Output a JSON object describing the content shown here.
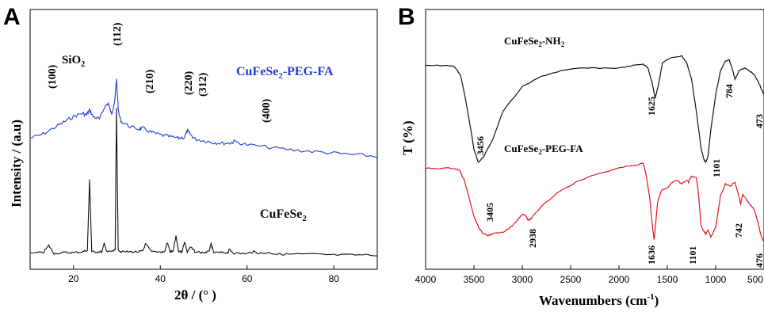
{
  "chart_data": [
    {
      "panel": "A",
      "type": "line",
      "xlabel": "2θ / (° )",
      "ylabel": "Intensity / (a.u)",
      "xlim": [
        10,
        90
      ],
      "xticks": [
        "20",
        "40",
        "60",
        "80"
      ],
      "xtick_values": [
        20,
        40,
        60,
        80
      ],
      "series": [
        {
          "name": "CuFeSe₂-PEG-FA",
          "color": "#1f3fd8",
          "x": [
            10,
            13,
            16,
            18,
            20,
            22,
            23,
            23.7,
            24.5,
            26,
            27.2,
            28,
            28.8,
            29.5,
            29.9,
            30.4,
            31,
            33,
            35,
            36,
            38,
            40,
            42,
            44,
            45.5,
            46.3,
            47,
            48,
            50,
            52,
            54,
            56,
            57,
            60,
            65,
            70,
            75,
            80,
            85,
            90
          ],
          "y": [
            10,
            15,
            24,
            30,
            36,
            40,
            38,
            44,
            36,
            33,
            48,
            52,
            38,
            56,
            80,
            40,
            30,
            24,
            21,
            22,
            17,
            14,
            12,
            10,
            11,
            19,
            14,
            9,
            7,
            5,
            4,
            4,
            6,
            2,
            -1,
            -4,
            -6,
            -8,
            -10,
            -12
          ]
        },
        {
          "name": "CuFeSe₂",
          "color": "#111111",
          "x": [
            10,
            13,
            14.3,
            15.5,
            18,
            20,
            22,
            23.2,
            23.7,
            24.2,
            25.5,
            26.6,
            27.1,
            27.6,
            29,
            29.6,
            29.9,
            30.3,
            31,
            33,
            35,
            36,
            36.6,
            38,
            40,
            41,
            41.6,
            42.3,
            43,
            43.6,
            44.2,
            45,
            45.6,
            46.2,
            47,
            48,
            50,
            51.2,
            51.7,
            52.3,
            54,
            55.5,
            56,
            57,
            60,
            61.5,
            63,
            65,
            67,
            70,
            75,
            80,
            85,
            90
          ],
          "y": [
            2,
            3,
            12,
            2,
            3,
            3,
            4,
            6,
            95,
            4,
            4,
            4,
            16,
            4,
            5,
            6,
            185,
            7,
            4,
            4,
            4,
            5,
            14,
            4,
            4,
            4,
            16,
            4,
            5,
            24,
            5,
            4,
            17,
            4,
            10,
            4,
            3,
            4,
            14,
            3,
            3,
            3,
            7,
            2,
            2,
            4,
            2,
            3,
            1,
            1,
            1,
            0,
            0,
            0
          ]
        }
      ],
      "annotations": [
        "SiO₂",
        "(100)",
        "(112)",
        "(210)",
        "(220)",
        "(312)",
        "(400)"
      ]
    },
    {
      "panel": "B",
      "type": "line",
      "xlabel": "Wavenumbers (cm⁻¹)",
      "ylabel": "T (%)",
      "xlim": [
        4000,
        500
      ],
      "xticks": [
        "4000",
        "3500",
        "3000",
        "2500",
        "2000",
        "1500",
        "1000",
        "500"
      ],
      "xtick_values": [
        4000,
        3500,
        3000,
        2500,
        2000,
        1500,
        1000,
        500
      ],
      "series": [
        {
          "name": "CuFeSe₂-NH₂",
          "color": "#111111",
          "x": [
            4000,
            3800,
            3700,
            3640,
            3600,
            3550,
            3500,
            3456,
            3400,
            3300,
            3200,
            3000,
            2800,
            2600,
            2400,
            2200,
            2000,
            1850,
            1750,
            1700,
            1660,
            1625,
            1590,
            1550,
            1450,
            1350,
            1300,
            1250,
            1200,
            1150,
            1120,
            1101,
            1080,
            1050,
            1000,
            950,
            900,
            860,
            830,
            800,
            784,
            760,
            700,
            650,
            600,
            560,
            530,
            500
          ],
          "y": [
            82,
            82,
            81,
            75,
            62,
            42,
            20,
            10,
            14,
            28,
            48,
            66,
            74,
            78,
            80,
            80,
            80,
            82,
            83,
            80,
            70,
            58,
            68,
            84,
            88,
            89,
            84,
            72,
            48,
            20,
            12,
            10,
            14,
            34,
            60,
            78,
            85,
            86,
            80,
            72,
            74,
            78,
            80,
            78,
            75,
            70,
            65,
            60
          ]
        },
        {
          "name": "CuFeSe₂-PEG-FA",
          "color": "#e0141e",
          "x": [
            4000,
            3850,
            3700,
            3650,
            3600,
            3550,
            3500,
            3450,
            3405,
            3350,
            3300,
            3200,
            3100,
            3000,
            2960,
            2938,
            2900,
            2800,
            2600,
            2400,
            2200,
            2000,
            1800,
            1750,
            1720,
            1680,
            1650,
            1636,
            1620,
            1600,
            1560,
            1500,
            1450,
            1400,
            1350,
            1300,
            1280,
            1250,
            1200,
            1180,
            1150,
            1120,
            1101,
            1080,
            1050,
            1000,
            950,
            900,
            850,
            800,
            760,
            742,
            720,
            650,
            600,
            560,
            530,
            500,
            476
          ],
          "y": [
            86,
            86,
            86,
            84,
            74,
            56,
            38,
            26,
            20,
            18,
            20,
            21,
            28,
            40,
            38,
            33,
            36,
            48,
            64,
            74,
            81,
            86,
            90,
            91,
            80,
            54,
            24,
            14,
            30,
            52,
            64,
            66,
            72,
            74,
            70,
            74,
            72,
            78,
            76,
            62,
            28,
            22,
            20,
            24,
            16,
            26,
            58,
            70,
            68,
            72,
            58,
            50,
            60,
            50,
            44,
            30,
            18,
            12,
            14
          ]
        }
      ],
      "annotations": [
        "3456",
        "1625",
        "1101",
        "784",
        "473",
        "3405",
        "2938",
        "1636",
        "1101",
        "742",
        "476"
      ]
    }
  ],
  "labels": {
    "panel_a_letter": "A",
    "panel_b_letter": "B",
    "a_series_1_prefix": "CuFeSe",
    "a_series_1_sub": "2",
    "a_series_1_suffix": "-PEG-FA",
    "a_series_2_prefix": "CuFeSe",
    "a_series_2_sub": "2",
    "a_sio2_prefix": "SiO",
    "a_sio2_sub": "2",
    "a_peak_100": "(100)",
    "a_peak_112": "(112)",
    "a_peak_210": "(210)",
    "a_peak_220": "(220)",
    "a_peak_312": "(312)",
    "a_peak_400": "(400)",
    "a_ylabel": "Intensity / (a.u)",
    "a_xlabel": "2θ / (° )",
    "b_series_1_prefix": "CuFeSe",
    "b_series_1_sub": "2",
    "b_series_1_suffix": "-NH",
    "b_series_1_sub2": "2",
    "b_series_2_prefix": "CuFeSe",
    "b_series_2_sub": "2",
    "b_series_2_suffix": "-PEG-FA",
    "b_ylabel": "T (%)",
    "b_xlabel_main": "Wavenumbers (cm",
    "b_xlabel_sup": "-1",
    "b_xlabel_end": ")",
    "b_peak_3456": "3456",
    "b_peak_1625": "1625",
    "b_peak_1101_top": "1101",
    "b_peak_784": "784",
    "b_peak_473": "473",
    "b_peak_3405": "3405",
    "b_peak_2938": "2938",
    "b_peak_1636": "1636",
    "b_peak_1101_bot": "1101",
    "b_peak_742": "742",
    "b_peak_476": "476"
  },
  "colors": {
    "blue": "#1f3fd8",
    "red": "#e0141e",
    "black": "#111111"
  }
}
